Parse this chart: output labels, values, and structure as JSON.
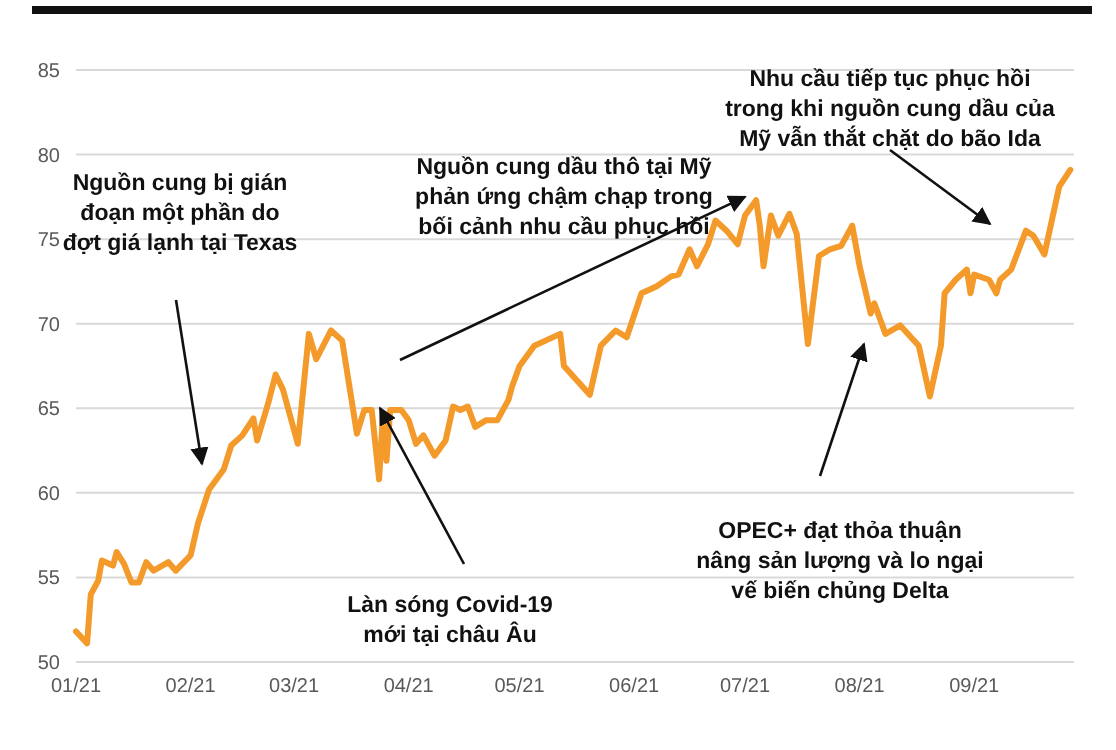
{
  "chart_data": {
    "type": "line",
    "x": [
      "2021-01-01",
      "2021-01-04",
      "2021-01-05",
      "2021-01-07",
      "2021-01-08",
      "2021-01-11",
      "2021-01-12",
      "2021-01-14",
      "2021-01-16",
      "2021-01-18",
      "2021-01-20",
      "2021-01-22",
      "2021-01-26",
      "2021-01-28",
      "2021-02-01",
      "2021-02-03",
      "2021-02-06",
      "2021-02-10",
      "2021-02-12",
      "2021-02-15",
      "2021-02-18",
      "2021-02-19",
      "2021-02-22",
      "2021-02-24",
      "2021-02-26",
      "2021-03-02",
      "2021-03-05",
      "2021-03-07",
      "2021-03-11",
      "2021-03-14",
      "2021-03-18",
      "2021-03-20",
      "2021-03-22",
      "2021-03-24",
      "2021-03-25",
      "2021-03-26",
      "2021-03-27",
      "2021-03-30",
      "2021-04-01",
      "2021-04-03",
      "2021-04-05",
      "2021-04-08",
      "2021-04-11",
      "2021-04-13",
      "2021-04-15",
      "2021-04-17",
      "2021-04-19",
      "2021-04-22",
      "2021-04-25",
      "2021-04-28",
      "2021-04-29",
      "2021-05-01",
      "2021-05-05",
      "2021-05-12",
      "2021-05-13",
      "2021-05-20",
      "2021-05-23",
      "2021-05-27",
      "2021-05-30",
      "2021-06-03",
      "2021-06-07",
      "2021-06-11",
      "2021-06-13",
      "2021-06-16",
      "2021-06-18",
      "2021-06-21",
      "2021-06-23",
      "2021-06-26",
      "2021-06-29",
      "2021-07-01",
      "2021-07-04",
      "2021-07-05",
      "2021-07-06",
      "2021-07-08",
      "2021-07-10",
      "2021-07-13",
      "2021-07-15",
      "2021-07-18",
      "2021-07-21",
      "2021-07-24",
      "2021-07-27",
      "2021-07-30",
      "2021-08-01",
      "2021-08-04",
      "2021-08-05",
      "2021-08-08",
      "2021-08-12",
      "2021-08-17",
      "2021-08-20",
      "2021-08-23",
      "2021-08-24",
      "2021-08-27",
      "2021-08-30",
      "2021-08-31",
      "2021-09-01",
      "2021-09-05",
      "2021-09-07",
      "2021-09-08",
      "2021-09-11",
      "2021-09-15",
      "2021-09-17",
      "2021-09-20",
      "2021-09-24",
      "2021-09-27"
    ],
    "series": [
      {
        "color": "#f39a2b",
        "values": [
          51.8,
          51.1,
          54.0,
          54.8,
          56.0,
          55.7,
          56.5,
          55.8,
          54.7,
          54.7,
          55.9,
          55.4,
          55.9,
          55.4,
          56.3,
          58.2,
          60.2,
          61.4,
          62.8,
          63.4,
          64.4,
          63.1,
          65.3,
          67.0,
          66.1,
          62.9,
          69.4,
          67.9,
          69.6,
          69.0,
          63.5,
          64.9,
          64.9,
          60.8,
          64.5,
          61.9,
          64.9,
          64.9,
          64.3,
          62.9,
          63.4,
          62.2,
          63.1,
          65.1,
          64.9,
          65.1,
          63.9,
          64.3,
          64.3,
          65.5,
          66.3,
          67.5,
          68.7,
          69.4,
          67.5,
          65.8,
          68.7,
          69.6,
          69.2,
          71.8,
          72.2,
          72.8,
          72.9,
          74.4,
          73.4,
          74.7,
          76.1,
          75.5,
          74.7,
          76.4,
          77.3,
          75.8,
          73.4,
          76.4,
          75.2,
          76.5,
          75.3,
          68.8,
          74.0,
          74.4,
          74.6,
          75.8,
          73.4,
          70.6,
          71.2,
          69.4,
          69.9,
          68.7,
          65.7,
          68.7,
          71.8,
          72.6,
          73.2,
          71.8,
          72.9,
          72.6,
          71.8,
          72.6,
          73.2,
          75.5,
          75.2,
          74.1,
          78.1,
          79.1
        ]
      }
    ],
    "xlim": [
      "2021-01-01",
      "2021-09-28"
    ],
    "xticks": [
      {
        "value": "2021-01-01",
        "label": "01/21"
      },
      {
        "value": "2021-02-01",
        "label": "02/21"
      },
      {
        "value": "2021-03-01",
        "label": "03/21"
      },
      {
        "value": "2021-04-01",
        "label": "04/21"
      },
      {
        "value": "2021-05-01",
        "label": "05/21"
      },
      {
        "value": "2021-06-01",
        "label": "06/21"
      },
      {
        "value": "2021-07-01",
        "label": "07/21"
      },
      {
        "value": "2021-08-01",
        "label": "08/21"
      },
      {
        "value": "2021-09-01",
        "label": "09/21"
      }
    ],
    "ylim": [
      50,
      85
    ],
    "yticks": [
      50,
      55,
      60,
      65,
      70,
      75,
      80,
      85
    ],
    "grid": "y",
    "marker": "none",
    "line_style": "solid",
    "annotations": [
      "Nguồn cung bị gián\nđoạn một phần do\nđợt giá lạnh tại Texas",
      {
        "text": "Nguồn cung dầu thô tại Mỹ\nphản ứng chậm chạp trong\nbối cảnh nhu cầu phục hồi",
        "x": "2021-07-01",
        "y": 77.5
      },
      "Nhu cầu tiếp tục phục hồi\ntrong khi nguồn cung dầu của\nMỹ vẫn thắt chặt do bão Ida",
      "Làn sóng Covid-19\nmới tại châu Âu",
      "OPEC+ đạt thỏa thuận\nnâng sản lượng và lo ngại\nvế biến chủng Delta"
    ]
  }
}
